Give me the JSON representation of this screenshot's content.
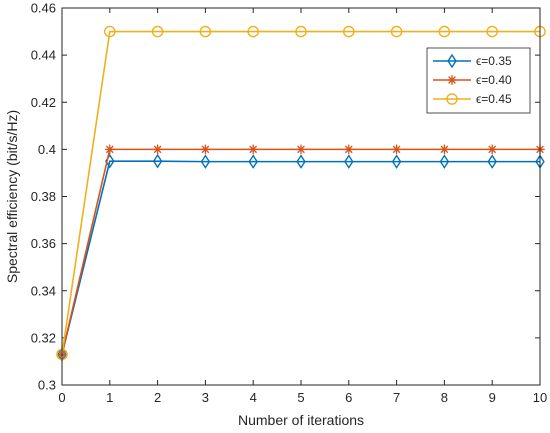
{
  "chart_data": {
    "type": "line",
    "title": "",
    "xlabel": "Number of iterations",
    "ylabel": "Spectral efficiency (bit/s/Hz)",
    "x": [
      0,
      1,
      2,
      3,
      4,
      5,
      6,
      7,
      8,
      9,
      10
    ],
    "xlim": [
      0,
      10
    ],
    "ylim": [
      0.3,
      0.46
    ],
    "x_ticks": [
      "0",
      "1",
      "2",
      "3",
      "4",
      "5",
      "6",
      "7",
      "8",
      "9",
      "10"
    ],
    "y_ticks": [
      "0.3",
      "0.32",
      "0.34",
      "0.36",
      "0.38",
      "0.4",
      "0.42",
      "0.44",
      "0.46"
    ],
    "grid": false,
    "legend_position": "top-right",
    "series": [
      {
        "name": "ϵ=0.35",
        "color": "#0072BD",
        "marker": "diamond",
        "values": [
          0.313,
          0.395,
          0.395,
          0.3948,
          0.3948,
          0.3948,
          0.3948,
          0.3948,
          0.3948,
          0.3948,
          0.3948
        ]
      },
      {
        "name": "ϵ=0.40",
        "color": "#D95319",
        "marker": "asterisk",
        "values": [
          0.313,
          0.4,
          0.4,
          0.4,
          0.4,
          0.4,
          0.4,
          0.4,
          0.4,
          0.4,
          0.4
        ]
      },
      {
        "name": "ϵ=0.45",
        "color": "#EDB120",
        "marker": "circle",
        "values": [
          0.313,
          0.45,
          0.45,
          0.45,
          0.45,
          0.45,
          0.45,
          0.45,
          0.45,
          0.45,
          0.45
        ]
      }
    ]
  }
}
